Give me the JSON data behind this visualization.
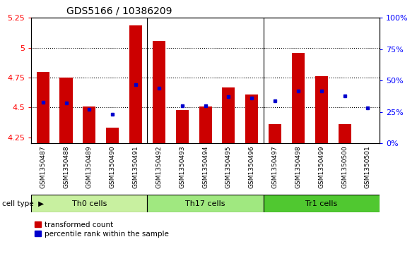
{
  "title": "GDS5166 / 10386209",
  "samples": [
    "GSM1350487",
    "GSM1350488",
    "GSM1350489",
    "GSM1350490",
    "GSM1350491",
    "GSM1350492",
    "GSM1350493",
    "GSM1350494",
    "GSM1350495",
    "GSM1350496",
    "GSM1350497",
    "GSM1350498",
    "GSM1350499",
    "GSM1350500",
    "GSM1350501"
  ],
  "red_values": [
    4.8,
    4.75,
    4.51,
    4.33,
    5.19,
    5.06,
    4.48,
    4.51,
    4.67,
    4.61,
    4.36,
    4.96,
    4.76,
    4.36,
    4.18
  ],
  "blue_values_pct": [
    33,
    32,
    27,
    23,
    47,
    44,
    30,
    30,
    37,
    36,
    34,
    42,
    42,
    38,
    28
  ],
  "cell_groups": [
    {
      "label": "Th0 cells",
      "start": 0,
      "end": 4,
      "color": "#c8f0a0"
    },
    {
      "label": "Th17 cells",
      "start": 5,
      "end": 9,
      "color": "#a0e880"
    },
    {
      "label": "Tr1 cells",
      "start": 10,
      "end": 14,
      "color": "#50c830"
    }
  ],
  "ylim_min": 4.2,
  "ylim_max": 5.25,
  "y_ticks": [
    4.25,
    4.5,
    4.75,
    5.0,
    5.25
  ],
  "ytick_labels": [
    "4.25",
    "4.5",
    "4.75",
    "5",
    "5.25"
  ],
  "hgrid_at": [
    4.5,
    4.75,
    5.0
  ],
  "right_ytick_pct": [
    0,
    25,
    50,
    75,
    100
  ],
  "right_ytick_labels": [
    "0%",
    "25%",
    "50%",
    "75%",
    "100%"
  ],
  "bar_color": "#cc0000",
  "blue_color": "#0000cc",
  "bar_width": 0.55,
  "legend_red_label": "transformed count",
  "legend_blue_label": "percentile rank within the sample",
  "cell_type_label": "cell type"
}
